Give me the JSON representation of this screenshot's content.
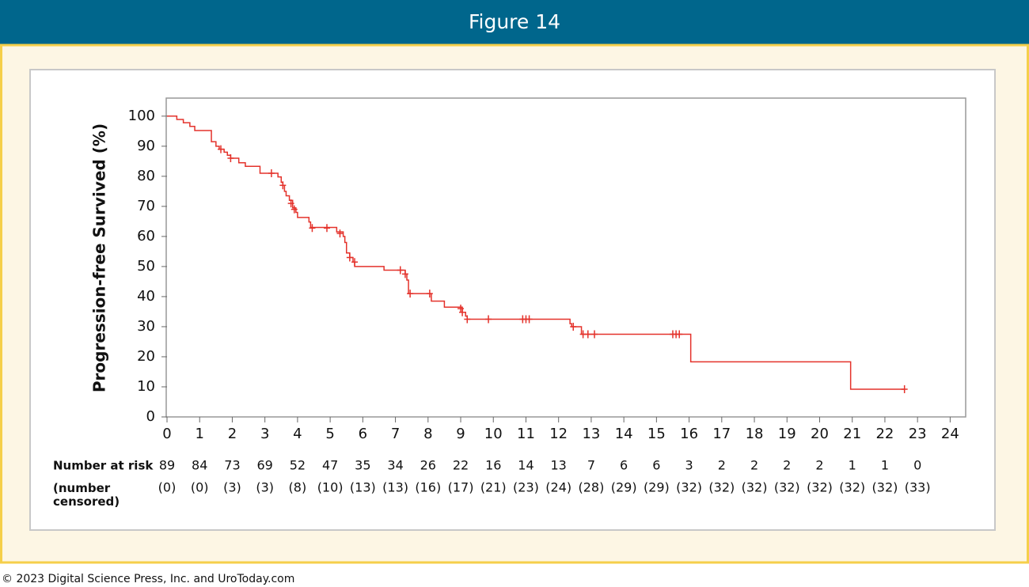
{
  "header": {
    "title": "Figure 14"
  },
  "chart_data": {
    "type": "kaplan-meier",
    "ylabel": "Progression-free Survived (%)",
    "color": "#e4322b",
    "x": [
      0,
      0.3,
      0.5,
      0.7,
      0.85,
      1.36,
      1.5,
      1.6,
      1.75,
      1.85,
      1.95,
      2.2,
      2.4,
      2.85,
      3.4,
      3.5,
      3.55,
      3.6,
      3.65,
      3.75,
      3.85,
      3.95,
      4.0,
      4.35,
      4.4,
      5.2,
      5.4,
      5.45,
      5.5,
      5.6,
      5.7,
      5.75,
      6.65,
      7.3,
      7.35,
      7.4,
      8.1,
      8.5,
      9.05,
      9.15,
      9.2,
      12.35,
      12.4,
      12.7,
      16.05,
      20.95,
      22.6
    ],
    "values": [
      100,
      98.9,
      97.8,
      96.6,
      95.2,
      91.5,
      90,
      89,
      88,
      87,
      86,
      84.5,
      83.3,
      81,
      79.8,
      78,
      77,
      75,
      73.5,
      72,
      69.5,
      68,
      66.3,
      64.8,
      63,
      61.5,
      60,
      58,
      54.5,
      53,
      51.5,
      50,
      48.8,
      47.5,
      45.5,
      41,
      38.5,
      36.5,
      34.8,
      33.5,
      32.5,
      31,
      30,
      27.5,
      18.3,
      9.2,
      9.2
    ],
    "censored_x": [
      1.65,
      1.95,
      3.2,
      3.55,
      3.8,
      3.9,
      4.45,
      4.9,
      5.3,
      5.6,
      5.75,
      7.15,
      7.3,
      7.45,
      8.05,
      9.0,
      9.05,
      9.2,
      9.85,
      10.9,
      11.0,
      11.1,
      12.45,
      12.75,
      12.9,
      13.1,
      15.5,
      15.6,
      15.7,
      22.6
    ],
    "censored_values": [
      89,
      86,
      81,
      77,
      71,
      69,
      62.8,
      62.8,
      61,
      53,
      51.5,
      48.8,
      47.5,
      41,
      41,
      36,
      34.8,
      32.5,
      32.5,
      32.5,
      32.5,
      32.5,
      30,
      27.5,
      27.5,
      27.5,
      27.5,
      27.5,
      27.5,
      9.2
    ],
    "xlim": [
      0,
      24.5
    ],
    "ylim": [
      0,
      106
    ],
    "xticks": [
      0,
      1,
      2,
      3,
      4,
      5,
      6,
      7,
      8,
      9,
      10,
      11,
      12,
      13,
      14,
      15,
      16,
      17,
      18,
      19,
      20,
      21,
      22,
      23,
      24
    ],
    "yticks": [
      0,
      10,
      20,
      30,
      40,
      50,
      60,
      70,
      80,
      90,
      100
    ],
    "risk_table": {
      "at_risk_label": "Number at risk",
      "at_risk": [
        89,
        84,
        73,
        69,
        52,
        47,
        35,
        34,
        26,
        22,
        16,
        14,
        13,
        7,
        6,
        6,
        3,
        2,
        2,
        2,
        2,
        1,
        1,
        0
      ],
      "censored_label": "(number censored)",
      "censored": [
        "(0)",
        "(0)",
        "(3)",
        "(3)",
        "(8)",
        "(10)",
        "(13)",
        "(13)",
        "(16)",
        "(17)",
        "(21)",
        "(23)",
        "(24)",
        "(28)",
        "(29)",
        "(29)",
        "(32)",
        "(32)",
        "(32)",
        "(32)",
        "(32)",
        "(32)",
        "(32)",
        "(33)"
      ]
    }
  },
  "footer": "© 2023 Digital Science Press, Inc. and UroToday.com"
}
